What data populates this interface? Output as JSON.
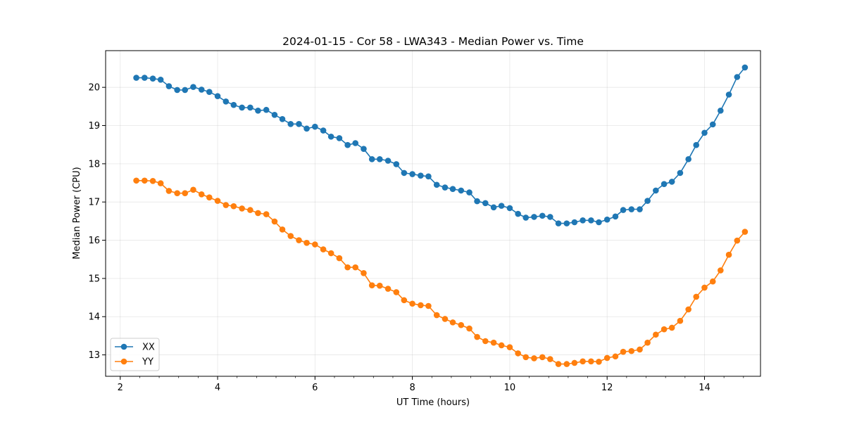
{
  "chart_data": {
    "type": "line",
    "title": "2024-01-15 - Cor 58 - LWA343 - Median Power vs. Time",
    "xlabel": "UT Time (hours)",
    "ylabel": "Median Power (CPU)",
    "xlim": [
      1.7,
      15.15
    ],
    "ylim": [
      12.44,
      20.96
    ],
    "xticks": [
      2,
      4,
      6,
      8,
      10,
      12,
      14
    ],
    "yticks": [
      13,
      14,
      15,
      16,
      17,
      18,
      19,
      20
    ],
    "xminor_step": 0.4,
    "grid": true,
    "legend_position": "lower-left",
    "marker": "circle",
    "x": [
      2.33,
      2.5,
      2.67,
      2.83,
      3.0,
      3.17,
      3.33,
      3.5,
      3.67,
      3.83,
      4.0,
      4.17,
      4.33,
      4.5,
      4.67,
      4.83,
      5.0,
      5.17,
      5.33,
      5.5,
      5.67,
      5.83,
      6.0,
      6.17,
      6.33,
      6.5,
      6.67,
      6.83,
      7.0,
      7.17,
      7.33,
      7.5,
      7.67,
      7.83,
      8.0,
      8.17,
      8.33,
      8.5,
      8.67,
      8.83,
      9.0,
      9.17,
      9.33,
      9.5,
      9.67,
      9.83,
      10.0,
      10.17,
      10.33,
      10.5,
      10.67,
      10.83,
      11.0,
      11.17,
      11.33,
      11.5,
      11.67,
      11.83,
      12.0,
      12.17,
      12.33,
      12.5,
      12.67,
      12.83,
      13.0,
      13.17,
      13.33,
      13.5,
      13.67,
      13.83,
      14.0,
      14.17,
      14.33,
      14.5,
      14.67,
      14.83
    ],
    "series": [
      {
        "name": "XX",
        "color": "#1f77b4",
        "values": [
          20.25,
          20.25,
          20.23,
          20.2,
          20.03,
          19.93,
          19.93,
          20.01,
          19.94,
          19.88,
          19.77,
          19.63,
          19.54,
          19.47,
          19.47,
          19.39,
          19.41,
          19.28,
          19.17,
          19.04,
          19.04,
          18.92,
          18.97,
          18.87,
          18.71,
          18.67,
          18.49,
          18.54,
          18.39,
          18.12,
          18.12,
          18.08,
          17.99,
          17.76,
          17.73,
          17.69,
          17.67,
          17.45,
          17.38,
          17.34,
          17.3,
          17.25,
          17.02,
          16.97,
          16.86,
          16.9,
          16.84,
          16.69,
          16.59,
          16.61,
          16.64,
          16.61,
          16.44,
          16.44,
          16.47,
          16.52,
          16.52,
          16.47,
          16.54,
          16.62,
          16.79,
          16.81,
          16.81,
          17.03,
          17.3,
          17.47,
          17.53,
          17.76,
          18.12,
          18.49,
          18.81,
          19.03,
          19.39,
          19.81,
          20.27,
          20.52
        ]
      },
      {
        "name": "YY",
        "color": "#ff7f0e",
        "values": [
          17.56,
          17.56,
          17.55,
          17.49,
          17.29,
          17.23,
          17.23,
          17.32,
          17.2,
          17.12,
          17.03,
          16.92,
          16.89,
          16.83,
          16.79,
          16.71,
          16.68,
          16.49,
          16.28,
          16.11,
          16.0,
          15.93,
          15.89,
          15.76,
          15.66,
          15.53,
          15.29,
          15.29,
          15.14,
          14.82,
          14.81,
          14.73,
          14.64,
          14.43,
          14.34,
          14.3,
          14.28,
          14.04,
          13.94,
          13.85,
          13.78,
          13.69,
          13.47,
          13.36,
          13.32,
          13.25,
          13.2,
          13.04,
          12.94,
          12.91,
          12.94,
          12.89,
          12.76,
          12.76,
          12.79,
          12.83,
          12.83,
          12.82,
          12.92,
          12.96,
          13.08,
          13.1,
          13.14,
          13.32,
          13.53,
          13.67,
          13.71,
          13.89,
          14.19,
          14.52,
          14.76,
          14.92,
          15.21,
          15.62,
          15.99,
          16.22
        ]
      }
    ]
  }
}
